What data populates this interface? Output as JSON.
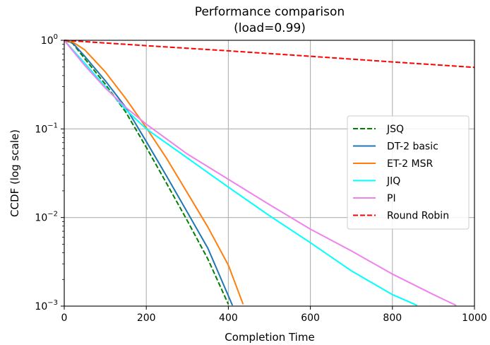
{
  "chart_data": {
    "type": "line",
    "title": "Performance comparison",
    "subtitle": "(load=0.99)",
    "xlabel": "Completion Time",
    "ylabel": "CCDF (log scale)",
    "xlim": [
      0,
      1000
    ],
    "ylim": [
      0.001,
      1
    ],
    "yscale": "log",
    "grid": true,
    "legend_position": "center-right",
    "x_ticks": [
      {
        "value": 0,
        "label": "0"
      },
      {
        "value": 200,
        "label": "200"
      },
      {
        "value": 400,
        "label": "400"
      },
      {
        "value": 600,
        "label": "600"
      },
      {
        "value": 800,
        "label": "800"
      },
      {
        "value": 1000,
        "label": "1000"
      }
    ],
    "y_ticks": [
      {
        "value": 1,
        "base": "10",
        "exp": "0"
      },
      {
        "value": 0.1,
        "base": "10",
        "exp": "−1"
      },
      {
        "value": 0.01,
        "base": "10",
        "exp": "−2"
      },
      {
        "value": 0.001,
        "base": "10",
        "exp": "−3"
      }
    ],
    "series": [
      {
        "name": "JSQ",
        "color": "#008000",
        "dash": "dashed",
        "points": [
          [
            0,
            1
          ],
          [
            20,
            0.93
          ],
          [
            50,
            0.62
          ],
          [
            100,
            0.32
          ],
          [
            150,
            0.155
          ],
          [
            200,
            0.062
          ],
          [
            250,
            0.024
          ],
          [
            300,
            0.0092
          ],
          [
            350,
            0.0034
          ],
          [
            400,
            0.00105
          ]
        ]
      },
      {
        "name": "DT-2 basic",
        "color": "#1f77b4",
        "dash": "solid",
        "points": [
          [
            0,
            1
          ],
          [
            20,
            0.94
          ],
          [
            50,
            0.66
          ],
          [
            100,
            0.35
          ],
          [
            150,
            0.175
          ],
          [
            200,
            0.072
          ],
          [
            250,
            0.029
          ],
          [
            300,
            0.0115
          ],
          [
            350,
            0.0045
          ],
          [
            410,
            0.00102
          ]
        ]
      },
      {
        "name": "ET-2 MSR",
        "color": "#ff7f0e",
        "dash": "solid",
        "points": [
          [
            0,
            1
          ],
          [
            20,
            0.96
          ],
          [
            50,
            0.78
          ],
          [
            100,
            0.44
          ],
          [
            150,
            0.22
          ],
          [
            200,
            0.103
          ],
          [
            250,
            0.046
          ],
          [
            300,
            0.019
          ],
          [
            350,
            0.0078
          ],
          [
            400,
            0.0029
          ],
          [
            436,
            0.00105
          ]
        ]
      },
      {
        "name": "JIQ",
        "color": "#00ffff",
        "dash": "solid",
        "points": [
          [
            0,
            1
          ],
          [
            50,
            0.55
          ],
          [
            100,
            0.3
          ],
          [
            150,
            0.165
          ],
          [
            200,
            0.1
          ],
          [
            300,
            0.047
          ],
          [
            400,
            0.022
          ],
          [
            500,
            0.0105
          ],
          [
            600,
            0.0052
          ],
          [
            700,
            0.0025
          ],
          [
            800,
            0.00135
          ],
          [
            860,
            0.00102
          ]
        ]
      },
      {
        "name": "PI",
        "color": "#ee82ee",
        "dash": "solid",
        "points": [
          [
            0,
            1
          ],
          [
            50,
            0.52
          ],
          [
            100,
            0.29
          ],
          [
            150,
            0.175
          ],
          [
            200,
            0.113
          ],
          [
            300,
            0.052
          ],
          [
            400,
            0.027
          ],
          [
            500,
            0.014
          ],
          [
            600,
            0.0074
          ],
          [
            700,
            0.0042
          ],
          [
            800,
            0.0023
          ],
          [
            900,
            0.00135
          ],
          [
            955,
            0.00102
          ]
        ]
      },
      {
        "name": "Round Robin",
        "color": "#ff0000",
        "dash": "dashed",
        "points": [
          [
            0,
            1
          ],
          [
            200,
            0.87
          ],
          [
            400,
            0.76
          ],
          [
            600,
            0.66
          ],
          [
            800,
            0.57
          ],
          [
            1000,
            0.495
          ]
        ]
      }
    ]
  }
}
